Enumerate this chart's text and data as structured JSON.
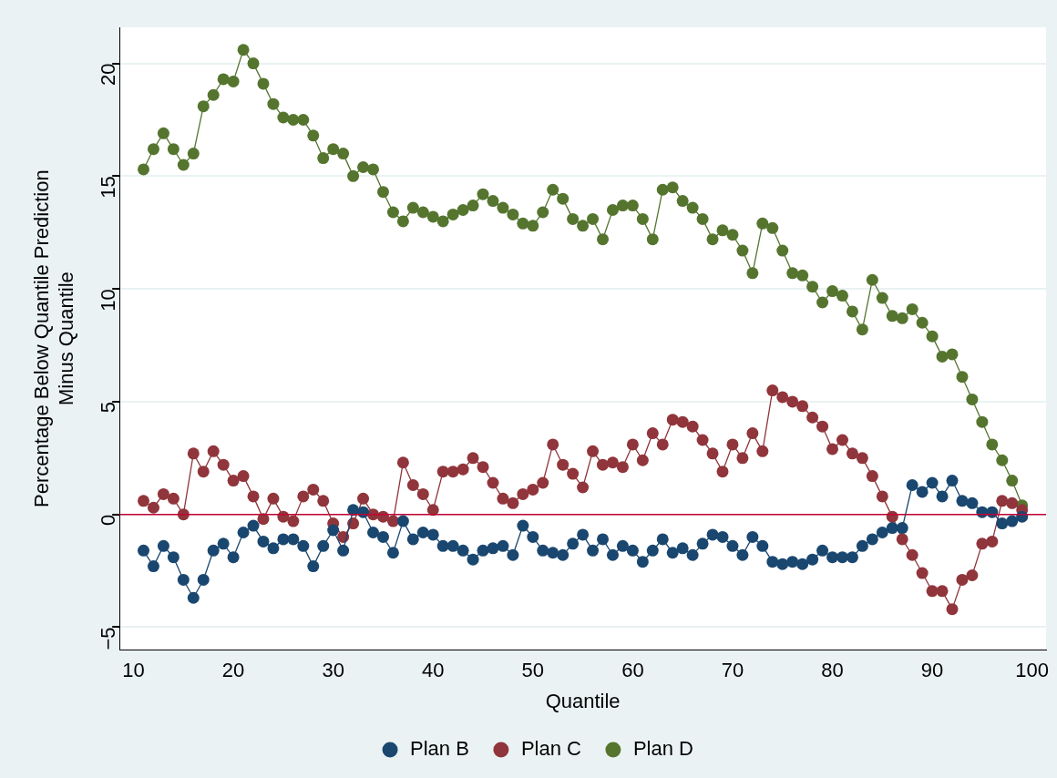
{
  "chart_data": {
    "type": "line",
    "xlabel": "Quantile",
    "ylabel": "Percentage Below Quantile Prediction\nMinus Quantile",
    "x": [
      11,
      12,
      13,
      14,
      15,
      16,
      17,
      18,
      19,
      20,
      21,
      22,
      23,
      24,
      25,
      26,
      27,
      28,
      29,
      30,
      31,
      32,
      33,
      34,
      35,
      36,
      37,
      38,
      39,
      40,
      41,
      42,
      43,
      44,
      45,
      46,
      47,
      48,
      49,
      50,
      51,
      52,
      53,
      54,
      55,
      56,
      57,
      58,
      59,
      60,
      61,
      62,
      63,
      64,
      65,
      66,
      67,
      68,
      69,
      70,
      71,
      72,
      73,
      74,
      75,
      76,
      77,
      78,
      79,
      80,
      81,
      82,
      83,
      84,
      85,
      86,
      87,
      88,
      89,
      90,
      91,
      92,
      93,
      94,
      95,
      96,
      97,
      98,
      99
    ],
    "series": [
      {
        "name": "Plan B",
        "color": "#1a476f",
        "values": [
          -1.6,
          -2.3,
          -1.4,
          -1.9,
          -2.9,
          -3.7,
          -2.9,
          -1.6,
          -1.3,
          -1.9,
          -0.8,
          -0.5,
          -1.2,
          -1.5,
          -1.1,
          -1.1,
          -1.4,
          -2.3,
          -1.4,
          -0.7,
          -1.6,
          0.2,
          0.1,
          -0.8,
          -1.0,
          -1.7,
          -0.3,
          -1.1,
          -0.8,
          -0.9,
          -1.4,
          -1.4,
          -1.6,
          -2.0,
          -1.6,
          -1.5,
          -1.4,
          -1.8,
          -0.5,
          -1.0,
          -1.6,
          -1.7,
          -1.8,
          -1.3,
          -0.9,
          -1.6,
          -1.1,
          -1.8,
          -1.4,
          -1.6,
          -2.1,
          -1.6,
          -1.1,
          -1.7,
          -1.5,
          -1.8,
          -1.3,
          -0.9,
          -1.0,
          -1.4,
          -1.8,
          -1.0,
          -1.4,
          -2.1,
          -2.2,
          -2.1,
          -2.2,
          -2.0,
          -1.6,
          -1.9,
          -1.9,
          -1.9,
          -1.4,
          -1.1,
          -0.8,
          -0.6,
          -0.6,
          1.3,
          1.0,
          1.4,
          0.8,
          1.5,
          0.6,
          0.5,
          0.1,
          0.1,
          -0.4,
          -0.3,
          -0.1
        ]
      },
      {
        "name": "Plan C",
        "color": "#90353b",
        "values": [
          0.6,
          0.3,
          0.9,
          0.7,
          0.0,
          2.7,
          1.9,
          2.8,
          2.2,
          1.5,
          1.7,
          0.8,
          -0.2,
          0.7,
          -0.1,
          -0.3,
          0.8,
          1.1,
          0.6,
          -0.4,
          -1.0,
          -0.4,
          0.7,
          0.0,
          -0.1,
          -0.3,
          2.3,
          1.3,
          0.9,
          0.2,
          1.9,
          1.9,
          2.0,
          2.5,
          2.1,
          1.4,
          0.7,
          0.5,
          0.9,
          1.1,
          1.4,
          3.1,
          2.2,
          1.8,
          1.2,
          2.8,
          2.2,
          2.3,
          2.1,
          3.1,
          2.4,
          3.6,
          3.1,
          4.2,
          4.1,
          3.9,
          3.3,
          2.7,
          1.9,
          3.1,
          2.5,
          3.6,
          2.8,
          5.5,
          5.2,
          5.0,
          4.8,
          4.3,
          3.9,
          2.9,
          3.3,
          2.7,
          2.5,
          1.7,
          0.8,
          -0.1,
          -1.1,
          -1.8,
          -2.6,
          -3.4,
          -3.4,
          -4.2,
          -2.9,
          -2.7,
          -1.3,
          -1.2,
          0.6,
          0.5,
          0.2
        ]
      },
      {
        "name": "Plan D",
        "color": "#55752f",
        "values": [
          15.3,
          16.2,
          16.9,
          16.2,
          15.5,
          16.0,
          18.1,
          18.6,
          19.3,
          19.2,
          20.6,
          20.0,
          19.1,
          18.2,
          17.6,
          17.5,
          17.5,
          16.8,
          15.8,
          16.2,
          16.0,
          15.0,
          15.4,
          15.3,
          14.3,
          13.4,
          13.0,
          13.6,
          13.4,
          13.2,
          13.0,
          13.3,
          13.5,
          13.7,
          14.2,
          13.9,
          13.6,
          13.3,
          12.9,
          12.8,
          13.4,
          14.4,
          14.0,
          13.1,
          12.8,
          13.1,
          12.2,
          13.5,
          13.7,
          13.7,
          13.1,
          12.2,
          14.4,
          14.5,
          13.9,
          13.6,
          13.1,
          12.2,
          12.6,
          12.4,
          11.7,
          10.7,
          12.9,
          12.7,
          11.7,
          10.7,
          10.6,
          10.1,
          9.4,
          9.9,
          9.7,
          9.0,
          8.2,
          10.4,
          9.6,
          8.8,
          8.7,
          9.1,
          8.5,
          7.9,
          7.0,
          7.1,
          6.1,
          5.1,
          4.1,
          3.1,
          2.4,
          1.5,
          0.4
        ]
      }
    ],
    "xlim": [
      8.6,
      101.4
    ],
    "xticks": [
      10,
      20,
      30,
      40,
      50,
      60,
      70,
      80,
      90,
      100
    ],
    "ylim": [
      -6,
      21.6
    ],
    "yticks": [
      -5,
      0,
      5,
      10,
      15,
      20
    ],
    "ref_lines": [
      {
        "axis": "y",
        "value": 0,
        "color": "#c10534"
      }
    ],
    "grid": "y",
    "legend": "bottom",
    "marker": "circle",
    "line_style": "solid"
  }
}
